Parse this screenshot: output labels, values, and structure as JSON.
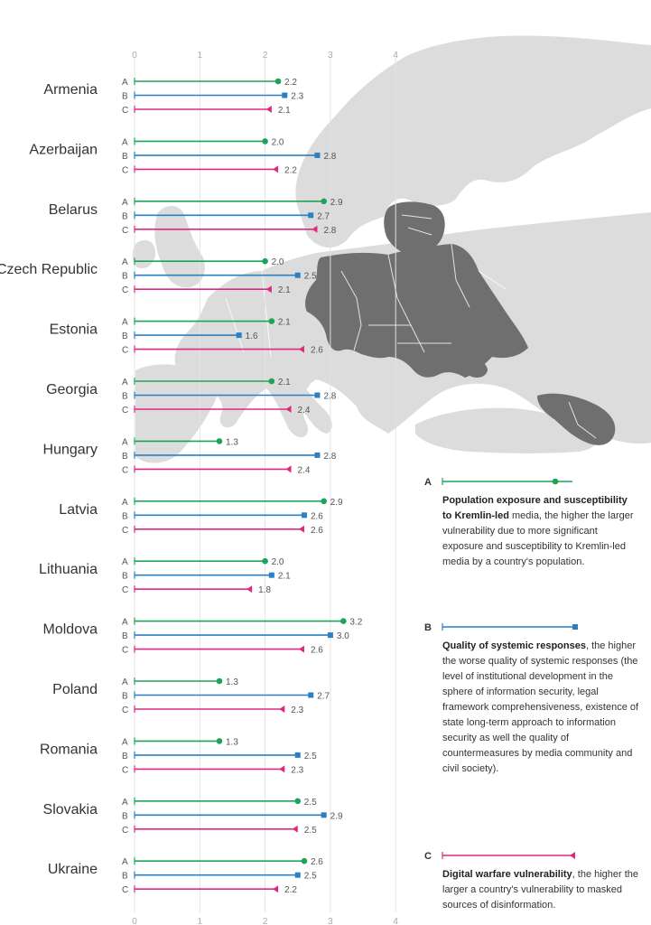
{
  "chart_data": {
    "type": "bar",
    "orientation": "horizontal",
    "x_ticks": [
      "0",
      "1",
      "2",
      "3",
      "4"
    ],
    "xlim": [
      0,
      4
    ],
    "grid": true,
    "categories": [
      "Armenia",
      "Azerbaijan",
      "Belarus",
      "Czech Republic",
      "Estonia",
      "Georgia",
      "Hungary",
      "Latvia",
      "Lithuania",
      "Moldova",
      "Poland",
      "Romania",
      "Slovakia",
      "Ukraine"
    ],
    "series": [
      {
        "name": "A",
        "color": "#1fa35a",
        "marker": "circle",
        "values": [
          2.2,
          2.0,
          2.9,
          2.0,
          2.1,
          2.1,
          1.3,
          2.9,
          2.0,
          3.2,
          1.3,
          1.3,
          2.5,
          2.6
        ],
        "labels": [
          "2.2",
          "2.0",
          "2.9",
          "2.0",
          "2.1",
          "2.1",
          "1.3",
          "2.9",
          "2.0",
          "3.2",
          "1.3",
          "1.3",
          "2.5",
          "2.6"
        ]
      },
      {
        "name": "B",
        "color": "#2b7fc2",
        "marker": "square",
        "values": [
          2.3,
          2.8,
          2.7,
          2.5,
          1.6,
          2.8,
          2.8,
          2.6,
          2.1,
          3.0,
          2.7,
          2.5,
          2.9,
          2.5
        ],
        "labels": [
          "2.3",
          "2.8",
          "2.7",
          "2.5",
          "1.6",
          "2.8",
          "2.8",
          "2.6",
          "2.1",
          "3.0",
          "2.7",
          "2.5",
          "2.9",
          "2.5"
        ]
      },
      {
        "name": "C",
        "color": "#e0287f",
        "marker": "triangle",
        "values": [
          2.1,
          2.2,
          2.8,
          2.1,
          2.6,
          2.4,
          2.4,
          2.6,
          1.8,
          2.6,
          2.3,
          2.3,
          2.5,
          2.2
        ],
        "labels": [
          "2.1",
          "2.2",
          "2.8",
          "2.1",
          "2.6",
          "2.4",
          "2.4",
          "2.6",
          "1.8",
          "2.6",
          "2.3",
          "2.3",
          "2.5",
          "2.2"
        ]
      }
    ],
    "legend": {
      "placement": "bottom-right",
      "items": [
        {
          "key": "A",
          "bold": "Population exposure and susceptibility to Kremlin-led",
          "text": " media, the higher the larger vulnerability due to more significant exposure and susceptibility to Kremlin-led media by a country's population."
        },
        {
          "key": "B",
          "bold": "Quality of systemic responses",
          "text": ", the higher the worse quality of systemic responses (the level of institutional development in the sphere of information security, legal framework comprehensiveness, existence of state long-term approach to information security as well the quality of countermeasures by media community and civil society)."
        },
        {
          "key": "C",
          "bold": "Digital warfare vulnerability",
          "text": ", the higher the larger a country's vulnerability to masked sources of disinformation."
        }
      ]
    }
  },
  "colors": {
    "map_land": "#dcdcdc",
    "map_highlight": "#6f6f70",
    "grid": "#e3e3e3",
    "text": "#333333"
  }
}
